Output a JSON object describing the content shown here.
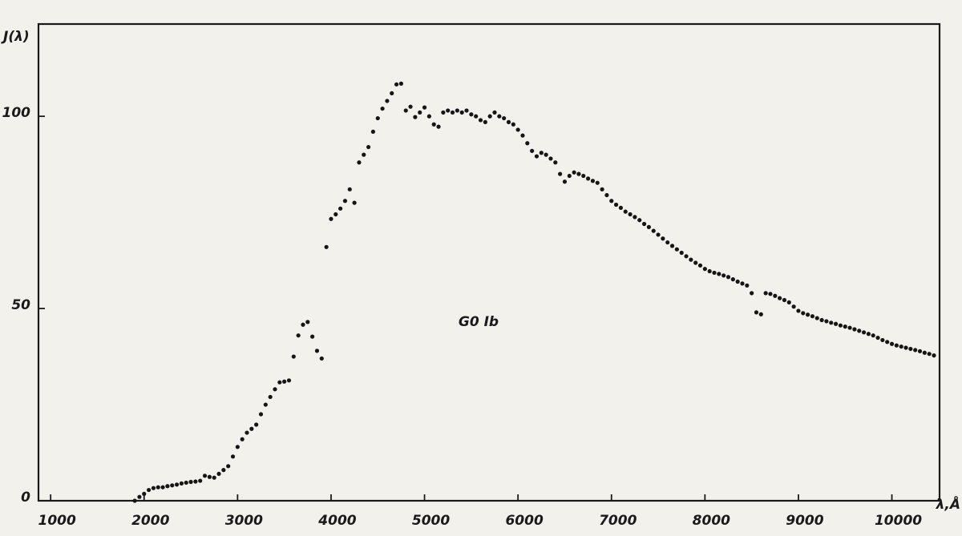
{
  "chart_data": {
    "type": "scatter",
    "y_axis_label": "J(λ)",
    "x_axis_label": "λ,Å",
    "annotation": "G0 Ib",
    "color": "#151515",
    "xlim": [
      870,
      10510
    ],
    "ylim": [
      0,
      124
    ],
    "xticks": [
      1000,
      2000,
      3000,
      4000,
      5000,
      6000,
      7000,
      8000,
      9000,
      10000
    ],
    "yticks": [
      0,
      50,
      100
    ],
    "grid": false,
    "x": [
      1900,
      1950,
      2000,
      2050,
      2100,
      2150,
      2200,
      2250,
      2300,
      2350,
      2400,
      2450,
      2500,
      2550,
      2600,
      2650,
      2700,
      2750,
      2800,
      2850,
      2900,
      2950,
      3000,
      3050,
      3100,
      3150,
      3200,
      3250,
      3300,
      3350,
      3400,
      3450,
      3500,
      3550,
      3600,
      3650,
      3700,
      3750,
      3800,
      3850,
      3900,
      3950,
      4000,
      4050,
      4100,
      4150,
      4200,
      4250,
      4300,
      4350,
      4400,
      4450,
      4500,
      4550,
      4600,
      4650,
      4700,
      4750,
      4800,
      4850,
      4900,
      4950,
      5000,
      5050,
      5100,
      5150,
      5200,
      5250,
      5300,
      5350,
      5400,
      5450,
      5500,
      5550,
      5600,
      5650,
      5700,
      5750,
      5800,
      5850,
      5900,
      5950,
      6000,
      6050,
      6100,
      6150,
      6200,
      6250,
      6300,
      6350,
      6400,
      6450,
      6500,
      6550,
      6600,
      6650,
      6700,
      6750,
      6800,
      6850,
      6900,
      6950,
      7000,
      7050,
      7100,
      7150,
      7200,
      7250,
      7300,
      7350,
      7400,
      7450,
      7500,
      7550,
      7600,
      7650,
      7700,
      7750,
      7800,
      7850,
      7900,
      7950,
      8000,
      8050,
      8100,
      8150,
      8200,
      8250,
      8300,
      8350,
      8400,
      8450,
      8500,
      8550,
      8600,
      8650,
      8700,
      8750,
      8800,
      8850,
      8900,
      8950,
      9000,
      9050,
      9100,
      9150,
      9200,
      9250,
      9300,
      9350,
      9400,
      9450,
      9500,
      9550,
      9600,
      9650,
      9700,
      9750,
      9800,
      9850,
      9900,
      9950,
      10000,
      10050,
      10100,
      10150,
      10200,
      10250,
      10300,
      10350,
      10400,
      10450
    ],
    "y": [
      0,
      1,
      1.8,
      2.8,
      3.3,
      3.5,
      3.5,
      3.8,
      4,
      4.2,
      4.5,
      4.7,
      4.9,
      5,
      5.2,
      6.5,
      6.2,
      6,
      7,
      8,
      9,
      11.5,
      14,
      16,
      17.7,
      18.7,
      19.8,
      22.5,
      25,
      27,
      29,
      30.8,
      31,
      31.3,
      37.5,
      43,
      45.8,
      46.5,
      42.7,
      39,
      37,
      66,
      73.3,
      74.5,
      76,
      78,
      81,
      77.5,
      88,
      90,
      92,
      96,
      99.5,
      102,
      104,
      106,
      108.3,
      108.5,
      101.5,
      102.5,
      99.8,
      101,
      102.3,
      100,
      97.9,
      97.3,
      101,
      101.5,
      101,
      101.5,
      101,
      101.5,
      100.5,
      100,
      99,
      98.5,
      100,
      101,
      100,
      99.5,
      98.5,
      97.9,
      96.5,
      95,
      93,
      91,
      89.6,
      90.5,
      90,
      89,
      88,
      85,
      83,
      84.5,
      85.4,
      85,
      84.5,
      83.8,
      83.2,
      82.7,
      81,
      79.5,
      78,
      77,
      76.2,
      75.2,
      74.5,
      73.8,
      73,
      72,
      71.2,
      70.2,
      69.2,
      68.2,
      67.2,
      66.3,
      65.4,
      64.5,
      63.6,
      62.7,
      61.9,
      61.2,
      60.3,
      59.7,
      59.3,
      59,
      58.6,
      58.2,
      57.6,
      57,
      56.5,
      56,
      54,
      49,
      48.5,
      54,
      53.8,
      53.3,
      52.7,
      52.2,
      51.6,
      50.5,
      49.4,
      48.8,
      48.4,
      48,
      47.5,
      47,
      46.7,
      46.3,
      46,
      45.6,
      45.3,
      45,
      44.6,
      44.2,
      43.8,
      43.4,
      43,
      42.4,
      41.8,
      41.3,
      40.8,
      40.4,
      40.1,
      39.8,
      39.5,
      39.2,
      38.9,
      38.5,
      38.2,
      37.8
    ]
  }
}
